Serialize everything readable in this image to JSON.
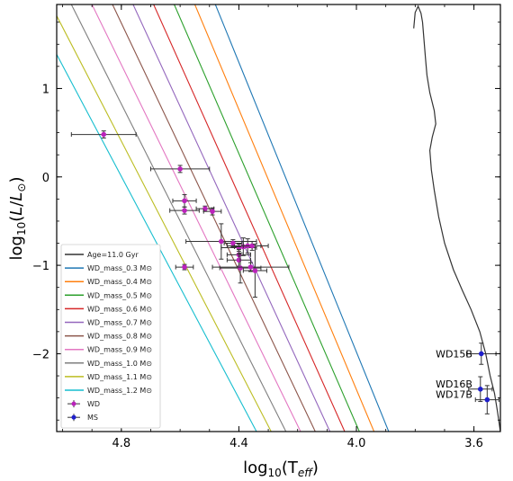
{
  "chart_data": {
    "type": "scatter",
    "xlabel": "log10(Teff)",
    "ylabel": "log10(L/L⊙)",
    "xlim": [
      5.02,
      3.51
    ],
    "ylim": [
      -2.88,
      1.95
    ],
    "x_ticks": [
      4.8,
      4.4,
      4.0,
      3.6
    ],
    "x_tick_labels": [
      "4.8",
      "4.4",
      "4.0",
      "3.6"
    ],
    "y_ticks": [
      1,
      0,
      -1,
      -2
    ],
    "y_tick_labels": [
      "1",
      "0",
      "−1",
      "−2"
    ],
    "x_reversed": true,
    "legend_position": "lower-left",
    "series": [
      {
        "name": "Age=11.0 Gyr",
        "kind": "isochrone",
        "color": "#333333",
        "x": [
          3.51,
          3.52,
          3.53,
          3.545,
          3.56,
          3.58,
          3.61,
          3.64,
          3.67,
          3.7,
          3.72,
          3.735,
          3.745,
          3.75,
          3.742,
          3.73,
          3.735,
          3.75,
          3.76,
          3.765,
          3.77,
          3.775,
          3.78,
          3.79,
          3.8,
          3.805
        ],
        "y": [
          -2.88,
          -2.65,
          -2.45,
          -2.25,
          -2.0,
          -1.75,
          -1.5,
          -1.28,
          -1.05,
          -0.75,
          -0.45,
          -0.15,
          0.08,
          0.3,
          0.45,
          0.6,
          0.75,
          0.95,
          1.15,
          1.35,
          1.55,
          1.75,
          1.85,
          1.93,
          1.86,
          1.68
        ]
      },
      {
        "name": "WD_mass_0.3 M⊙",
        "kind": "cooling",
        "color": "#1f77b4",
        "x": [
          4.48,
          3.89
        ],
        "y": [
          1.95,
          -2.88
        ]
      },
      {
        "name": "WD_mass_0.4 M⊙",
        "kind": "cooling",
        "color": "#ff7f0e",
        "x": [
          4.55,
          3.94
        ],
        "y": [
          1.95,
          -2.88
        ]
      },
      {
        "name": "WD_mass_0.5 M⊙",
        "kind": "cooling",
        "color": "#2ca02c",
        "x": [
          4.62,
          3.99
        ],
        "y": [
          1.95,
          -2.88
        ]
      },
      {
        "name": "WD_mass_0.6 M⊙",
        "kind": "cooling",
        "color": "#d62728",
        "x": [
          4.69,
          4.04
        ],
        "y": [
          1.95,
          -2.88
        ]
      },
      {
        "name": "WD_mass_0.7 M⊙",
        "kind": "cooling",
        "color": "#9467bd",
        "x": [
          4.76,
          4.09
        ],
        "y": [
          1.95,
          -2.88
        ]
      },
      {
        "name": "WD_mass_0.8 M⊙",
        "kind": "cooling",
        "color": "#8c564b",
        "x": [
          4.83,
          4.14
        ],
        "y": [
          1.95,
          -2.88
        ]
      },
      {
        "name": "WD_mass_0.9 M⊙",
        "kind": "cooling",
        "color": "#e377c2",
        "x": [
          4.9,
          4.19
        ],
        "y": [
          1.95,
          -2.88
        ]
      },
      {
        "name": "WD_mass_1.0 M⊙",
        "kind": "cooling",
        "color": "#7f7f7f",
        "x": [
          4.97,
          4.24
        ],
        "y": [
          1.95,
          -2.88
        ]
      },
      {
        "name": "WD_mass_1.1 M⊙",
        "kind": "cooling",
        "color": "#bcbd22",
        "x": [
          5.04,
          4.29
        ],
        "y": [
          1.95,
          -2.88
        ]
      },
      {
        "name": "WD_mass_1.2 M⊙",
        "kind": "cooling",
        "color": "#17becf",
        "x": [
          5.11,
          4.34
        ],
        "y": [
          1.95,
          -2.88
        ]
      },
      {
        "name": "WD",
        "kind": "points",
        "color": "#bb22bb",
        "points": [
          {
            "x": 4.86,
            "y": 0.48,
            "xerr": 0.11,
            "yerr": 0.04
          },
          {
            "x": 4.6,
            "y": 0.09,
            "xerr": 0.1,
            "yerr": 0.04
          },
          {
            "x": 4.585,
            "y": -0.27,
            "xerr": 0.04,
            "yerr": 0.07
          },
          {
            "x": 4.585,
            "y": -0.38,
            "xerr": 0.05,
            "yerr": 0.04
          },
          {
            "x": 4.515,
            "y": -0.36,
            "xerr": 0.03,
            "yerr": 0.03
          },
          {
            "x": 4.49,
            "y": -0.39,
            "xerr": 0.03,
            "yerr": 0.04
          },
          {
            "x": 4.585,
            "y": -1.02,
            "xerr": 0.03,
            "yerr": 0.03
          },
          {
            "x": 4.46,
            "y": -0.73,
            "xerr": 0.12,
            "yerr": 0.2
          },
          {
            "x": 4.42,
            "y": -0.75,
            "xerr": 0.03,
            "yerr": 0.04
          },
          {
            "x": 4.4,
            "y": -0.8,
            "xerr": 0.06,
            "yerr": 0.04
          },
          {
            "x": 4.385,
            "y": -0.79,
            "xerr": 0.03,
            "yerr": 0.1
          },
          {
            "x": 4.37,
            "y": -0.78,
            "xerr": 0.07,
            "yerr": 0.08
          },
          {
            "x": 4.355,
            "y": -0.78,
            "xerr": 0.03,
            "yerr": 0.05
          },
          {
            "x": 4.4,
            "y": -0.88,
            "xerr": 0.04,
            "yerr": 0.06
          },
          {
            "x": 4.4,
            "y": -0.94,
            "xerr": 0.04,
            "yerr": 0.07
          },
          {
            "x": 4.395,
            "y": -1.03,
            "xerr": 0.07,
            "yerr": 0.17
          },
          {
            "x": 4.36,
            "y": -1.02,
            "xerr": 0.13,
            "yerr": 0.05
          },
          {
            "x": 4.345,
            "y": -1.06,
            "xerr": 0.04,
            "yerr": 0.3
          }
        ]
      },
      {
        "name": "MS",
        "kind": "points",
        "color": "#1f1fcc",
        "points": [
          {
            "x": 3.575,
            "y": -2.0,
            "xerr": 0.05,
            "yerr": 0.12
          },
          {
            "x": 3.578,
            "y": -2.4,
            "xerr": 0.04,
            "yerr": 0.14
          },
          {
            "x": 3.555,
            "y": -2.52,
            "xerr": 0.04,
            "yerr": 0.16
          }
        ]
      }
    ],
    "annotations": [
      {
        "text": "WD15B",
        "x": 3.605,
        "y": -2.0
      },
      {
        "text": "WD16B",
        "x": 3.605,
        "y": -2.34
      },
      {
        "text": "WD17B",
        "x": 3.605,
        "y": -2.46
      }
    ]
  }
}
